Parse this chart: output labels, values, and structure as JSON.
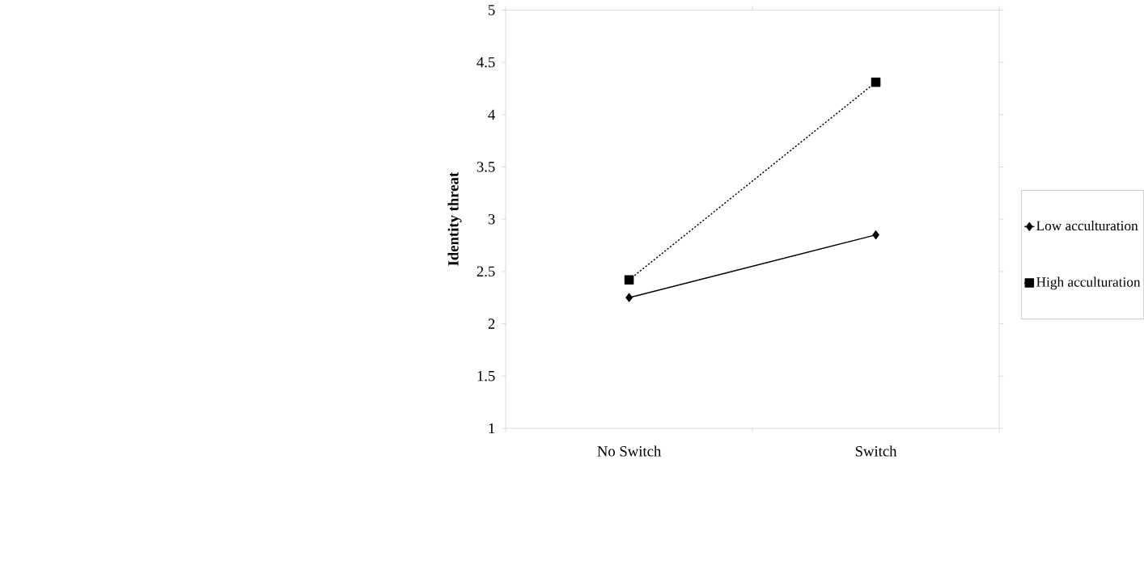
{
  "chart_data": {
    "type": "line",
    "ylabel": "Identity threat",
    "categories": [
      "No Switch",
      "Switch"
    ],
    "ylim": [
      1,
      5
    ],
    "yticks": [
      1,
      1.5,
      2,
      2.5,
      3,
      3.5,
      4,
      4.5,
      5
    ],
    "legend": "right",
    "grid": false,
    "series": [
      {
        "name": "Low acculturation",
        "color": "#000000",
        "marker": "diamond",
        "line_style": "solid",
        "values": [
          2.25,
          2.85
        ]
      },
      {
        "name": "High acculturation",
        "color": "#000000",
        "marker": "square",
        "line_style": "dashed",
        "values": [
          2.42,
          4.31
        ]
      }
    ]
  }
}
